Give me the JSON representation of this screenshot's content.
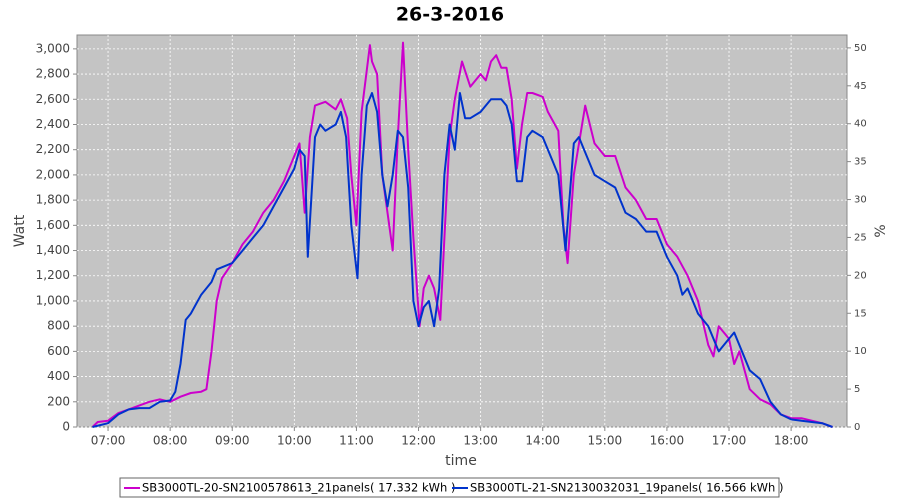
{
  "chart_data": {
    "type": "line",
    "title": "26-3-2016",
    "x_label": "time",
    "y_label": "Watt",
    "y2_label": "%",
    "xlim": [
      "06:30",
      "18:54"
    ],
    "xticks": [
      "07:00",
      "08:00",
      "09:00",
      "10:00",
      "11:00",
      "12:00",
      "13:00",
      "14:00",
      "15:00",
      "16:00",
      "17:00",
      "18:00"
    ],
    "ylim": [
      0,
      3110
    ],
    "yticks": [
      0,
      200,
      400,
      600,
      800,
      {
        "value": 1000,
        "label": "1,000"
      },
      {
        "value": 1200,
        "label": "1,200"
      },
      {
        "value": 1400,
        "label": "1,400"
      },
      {
        "value": 1600,
        "label": "1,600"
      },
      {
        "value": 1800,
        "label": "1,800"
      },
      {
        "value": 2000,
        "label": "2,000"
      },
      {
        "value": 2200,
        "label": "2,200"
      },
      {
        "value": 2400,
        "label": "2,400"
      },
      {
        "value": 2600,
        "label": "2,600"
      },
      {
        "value": 2800,
        "label": "2,800"
      },
      {
        "value": 3000,
        "label": "3,000"
      }
    ],
    "y2lim": [
      0,
      51.7
    ],
    "y2ticks": [
      0,
      5,
      10,
      15,
      20,
      25,
      30,
      35,
      40,
      45,
      50
    ],
    "grid": true,
    "legend": "bottom",
    "series": [
      {
        "name": "SB3000TL-20-SN2100578613_21panels( 17.332 kWh )",
        "color": "#cc00cc",
        "x": [
          "06:45",
          "06:50",
          "07:00",
          "07:10",
          "07:20",
          "07:30",
          "07:40",
          "07:50",
          "08:00",
          "08:10",
          "08:20",
          "08:30",
          "08:35",
          "08:40",
          "08:45",
          "08:50",
          "09:00",
          "09:10",
          "09:20",
          "09:30",
          "09:40",
          "09:50",
          "10:00",
          "10:05",
          "10:10",
          "10:15",
          "10:20",
          "10:30",
          "10:40",
          "10:45",
          "10:51",
          "10:55",
          "11:00",
          "11:05",
          "11:13",
          "11:15",
          "11:20",
          "11:25",
          "11:35",
          "11:40",
          "11:45",
          "11:50",
          "11:55",
          "12:01",
          "12:05",
          "12:10",
          "12:15",
          "12:21",
          "12:25",
          "12:30",
          "12:35",
          "12:42",
          "12:50",
          "13:00",
          "13:05",
          "13:10",
          "13:15",
          "13:20",
          "13:25",
          "13:30",
          "13:35",
          "13:40",
          "13:45",
          "13:50",
          "14:00",
          "14:05",
          "14:15",
          "14:20",
          "14:24",
          "14:30",
          "14:41",
          "14:50",
          "15:00",
          "15:10",
          "15:20",
          "15:30",
          "15:40",
          "15:50",
          "16:00",
          "16:10",
          "16:20",
          "16:30",
          "16:40",
          "16:45",
          "16:50",
          "17:00",
          "17:05",
          "17:10",
          "17:20",
          "17:30",
          "17:40",
          "17:50",
          "18:00",
          "18:10",
          "18:20",
          "18:30",
          "18:40"
        ],
        "values": [
          0,
          40,
          50,
          110,
          140,
          170,
          200,
          220,
          200,
          240,
          270,
          280,
          300,
          600,
          1000,
          1180,
          1300,
          1450,
          1550,
          1700,
          1800,
          1950,
          2150,
          2250,
          1700,
          2300,
          2550,
          2580,
          2520,
          2600,
          2450,
          2000,
          1600,
          2500,
          3030,
          2900,
          2800,
          2000,
          1400,
          2300,
          3050,
          2200,
          1500,
          800,
          1100,
          1200,
          1100,
          850,
          1500,
          2300,
          2600,
          2900,
          2700,
          2800,
          2750,
          2900,
          2950,
          2850,
          2850,
          2600,
          2050,
          2400,
          2650,
          2650,
          2620,
          2500,
          2350,
          1600,
          1300,
          2000,
          2550,
          2250,
          2150,
          2150,
          1900,
          1800,
          1650,
          1650,
          1450,
          1350,
          1200,
          1000,
          650,
          560,
          800,
          700,
          500,
          600,
          300,
          220,
          180,
          100,
          70,
          70,
          50,
          30,
          0
        ]
      },
      {
        "name": "SB3000TL-21-SN2130032031_19panels( 16.566 kWh )",
        "color": "#0033cc",
        "x": [
          "06:45",
          "07:00",
          "07:10",
          "07:20",
          "07:30",
          "07:40",
          "07:50",
          "08:00",
          "08:05",
          "08:10",
          "08:15",
          "08:20",
          "08:30",
          "08:40",
          "08:45",
          "09:00",
          "09:10",
          "09:20",
          "09:30",
          "09:40",
          "09:50",
          "10:00",
          "10:05",
          "10:10",
          "10:13",
          "10:20",
          "10:25",
          "10:30",
          "10:40",
          "10:45",
          "10:50",
          "10:55",
          "11:01",
          "11:05",
          "11:10",
          "11:15",
          "11:20",
          "11:25",
          "11:30",
          "11:35",
          "11:40",
          "11:45",
          "11:50",
          "11:55",
          "12:00",
          "12:05",
          "12:10",
          "12:15",
          "12:20",
          "12:25",
          "12:30",
          "12:35",
          "12:40",
          "12:45",
          "12:50",
          "13:00",
          "13:10",
          "13:20",
          "13:25",
          "13:30",
          "13:35",
          "13:40",
          "13:45",
          "13:50",
          "14:00",
          "14:10",
          "14:15",
          "14:22",
          "14:30",
          "14:35",
          "14:40",
          "14:50",
          "15:00",
          "15:10",
          "15:20",
          "15:30",
          "15:40",
          "15:50",
          "16:00",
          "16:10",
          "16:15",
          "16:20",
          "16:30",
          "16:40",
          "16:50",
          "17:00",
          "17:05",
          "17:10",
          "17:20",
          "17:30",
          "17:40",
          "17:50",
          "18:00",
          "18:10",
          "18:20",
          "18:30",
          "18:40"
        ],
        "values": [
          0,
          30,
          100,
          140,
          150,
          150,
          200,
          210,
          280,
          500,
          850,
          900,
          1050,
          1150,
          1250,
          1300,
          1400,
          1500,
          1600,
          1750,
          1900,
          2050,
          2200,
          2150,
          1350,
          2300,
          2400,
          2350,
          2400,
          2500,
          2300,
          1600,
          1180,
          2000,
          2550,
          2650,
          2500,
          2000,
          1750,
          2000,
          2350,
          2300,
          1900,
          1000,
          800,
          950,
          1000,
          800,
          1100,
          2000,
          2400,
          2200,
          2650,
          2450,
          2450,
          2500,
          2600,
          2600,
          2550,
          2400,
          1950,
          1950,
          2300,
          2350,
          2300,
          2100,
          2000,
          1400,
          2250,
          2300,
          2200,
          2000,
          1950,
          1900,
          1700,
          1650,
          1550,
          1550,
          1350,
          1200,
          1050,
          1100,
          900,
          800,
          600,
          700,
          750,
          650,
          450,
          380,
          200,
          100,
          60,
          50,
          40,
          30,
          0
        ]
      }
    ]
  }
}
